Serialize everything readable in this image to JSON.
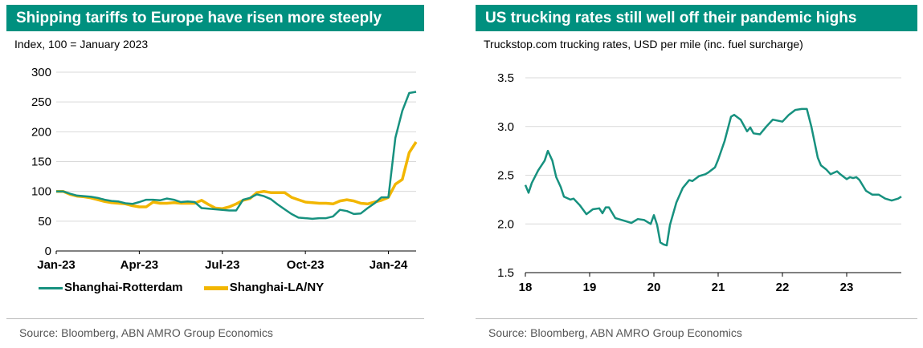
{
  "chart_data": [
    {
      "type": "line",
      "title": "Shipping tariffs to Europe have risen more steeply",
      "subtitle": "Index, 100 = January 2023",
      "source": "Source: Bloomberg, ABN AMRO Group Economics",
      "y_ticks": [
        "300",
        "250",
        "200",
        "150",
        "100",
        "50",
        "0"
      ],
      "x_ticks": [
        "Jan-23",
        "Apr-23",
        "Jul-23",
        "Oct-23",
        "Jan-24"
      ],
      "ylim": [
        0,
        300
      ],
      "xlim": [
        0,
        13
      ],
      "legend": "bottom",
      "colors": {
        "Shanghai-Rotterdam": "#17917f",
        "Shanghai-LA/NY": "#f2b600"
      },
      "series": [
        {
          "name": "Shanghai-Rotterdam",
          "x": [
            0,
            0.25,
            0.5,
            0.75,
            1,
            1.25,
            1.5,
            1.75,
            2,
            2.25,
            2.5,
            2.75,
            3,
            3.25,
            3.5,
            3.75,
            4,
            4.25,
            4.5,
            4.75,
            5,
            5.25,
            5.5,
            5.75,
            6,
            6.25,
            6.5,
            6.75,
            7,
            7.25,
            7.5,
            7.75,
            8,
            8.25,
            8.5,
            8.75,
            9,
            9.25,
            9.5,
            9.75,
            10,
            10.25,
            10.5,
            10.75,
            11,
            11.25,
            11.5,
            11.75,
            12,
            12.25,
            12.5,
            12.75,
            13
          ],
          "values": [
            100,
            100,
            96,
            93,
            92,
            91,
            89,
            86,
            84,
            83,
            80,
            79,
            82,
            86,
            86,
            85,
            88,
            86,
            82,
            83,
            82,
            72,
            71,
            70,
            69,
            68,
            68,
            86,
            89,
            95,
            92,
            87,
            78,
            70,
            62,
            56,
            55,
            54,
            55,
            55,
            58,
            69,
            67,
            62,
            63,
            72,
            80,
            90,
            90,
            190,
            235,
            265,
            267
          ]
        },
        {
          "name": "Shanghai-LA/NY",
          "x": [
            0,
            0.25,
            0.5,
            0.75,
            1,
            1.25,
            1.5,
            1.75,
            2,
            2.25,
            2.5,
            2.75,
            3,
            3.25,
            3.5,
            3.75,
            4,
            4.25,
            4.5,
            4.75,
            5,
            5.25,
            5.5,
            5.75,
            6,
            6.25,
            6.5,
            6.75,
            7,
            7.25,
            7.5,
            7.75,
            8,
            8.25,
            8.5,
            8.75,
            9,
            9.25,
            9.5,
            9.75,
            10,
            10.25,
            10.5,
            10.75,
            11,
            11.25,
            11.5,
            11.75,
            12,
            12.25,
            12.5,
            12.75,
            13
          ],
          "values": [
            100,
            100,
            95,
            92,
            91,
            89,
            86,
            83,
            81,
            80,
            79,
            76,
            74,
            74,
            82,
            80,
            80,
            81,
            80,
            80,
            80,
            85,
            78,
            72,
            71,
            74,
            79,
            85,
            88,
            98,
            100,
            98,
            98,
            98,
            90,
            86,
            82,
            81,
            80,
            80,
            79,
            84,
            86,
            84,
            80,
            79,
            82,
            85,
            90,
            112,
            120,
            165,
            183
          ]
        }
      ]
    },
    {
      "type": "line",
      "title": "US trucking rates still well off their pandemic highs",
      "subtitle": "Truckstop.com trucking rates, USD per mile (inc. fuel surcharge)",
      "source": "Source: Bloomberg, ABN AMRO Group Economics",
      "y_ticks": [
        "3.5",
        "3.0",
        "2.5",
        "2.0",
        "1.5"
      ],
      "x_ticks": [
        "18",
        "19",
        "20",
        "21",
        "22",
        "23"
      ],
      "ylim": [
        1.5,
        3.5
      ],
      "xlim": [
        2018.0,
        2023.85
      ],
      "colors": {
        "line": "#17917f"
      },
      "series": [
        {
          "name": "",
          "x": [
            2018.0,
            2018.05,
            2018.1,
            2018.2,
            2018.3,
            2018.35,
            2018.42,
            2018.48,
            2018.55,
            2018.6,
            2018.7,
            2018.75,
            2018.85,
            2018.95,
            2019.05,
            2019.15,
            2019.2,
            2019.25,
            2019.3,
            2019.4,
            2019.45,
            2019.55,
            2019.65,
            2019.75,
            2019.85,
            2019.95,
            2020.0,
            2020.05,
            2020.1,
            2020.15,
            2020.2,
            2020.25,
            2020.35,
            2020.45,
            2020.55,
            2020.6,
            2020.7,
            2020.75,
            2020.8,
            2020.85,
            2020.95,
            2021.0,
            2021.1,
            2021.2,
            2021.25,
            2021.35,
            2021.4,
            2021.45,
            2021.5,
            2021.55,
            2021.65,
            2021.75,
            2021.85,
            2022.0,
            2022.1,
            2022.2,
            2022.3,
            2022.38,
            2022.45,
            2022.55,
            2022.6,
            2022.68,
            2022.75,
            2022.85,
            2022.9,
            2023.0,
            2023.05,
            2023.1,
            2023.15,
            2023.2,
            2023.3,
            2023.4,
            2023.5,
            2023.6,
            2023.7,
            2023.8,
            2023.85
          ],
          "values": [
            2.4,
            2.32,
            2.42,
            2.55,
            2.65,
            2.75,
            2.65,
            2.48,
            2.38,
            2.28,
            2.25,
            2.26,
            2.19,
            2.1,
            2.15,
            2.16,
            2.11,
            2.17,
            2.17,
            2.06,
            2.05,
            2.03,
            2.01,
            2.05,
            2.04,
            2.0,
            2.09,
            1.99,
            1.81,
            1.79,
            1.78,
            1.99,
            2.22,
            2.37,
            2.45,
            2.44,
            2.49,
            2.5,
            2.51,
            2.53,
            2.58,
            2.66,
            2.85,
            3.1,
            3.12,
            3.07,
            3.01,
            2.95,
            2.99,
            2.93,
            2.92,
            3.0,
            3.07,
            3.05,
            3.12,
            3.17,
            3.18,
            3.18,
            3.0,
            2.68,
            2.6,
            2.56,
            2.51,
            2.54,
            2.51,
            2.46,
            2.48,
            2.47,
            2.48,
            2.45,
            2.34,
            2.3,
            2.3,
            2.26,
            2.24,
            2.26,
            2.28
          ]
        }
      ]
    }
  ]
}
